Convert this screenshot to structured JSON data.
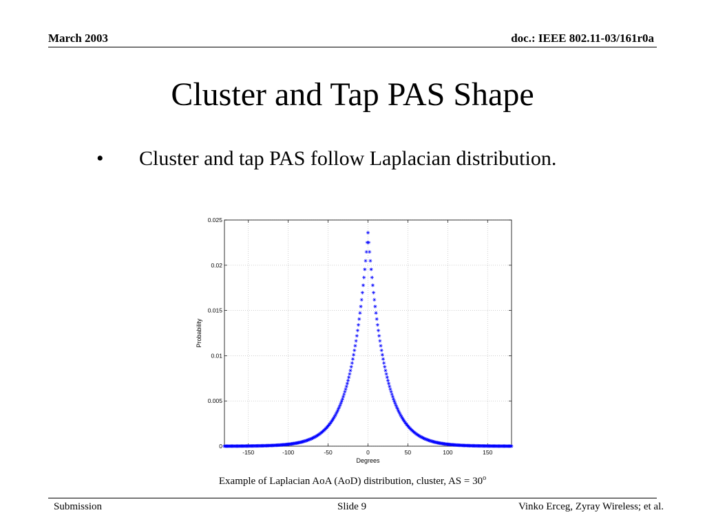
{
  "header": {
    "date": "March 2003",
    "doc": "doc.: IEEE 802.11-03/161r0a"
  },
  "title": "Cluster and Tap PAS Shape",
  "bullets": [
    {
      "marker": "•",
      "text": "Cluster and tap PAS follow Laplacian distribution."
    }
  ],
  "chart_data": {
    "type": "scatter",
    "marker": "*",
    "color": "#0000ff",
    "xlabel": "Degrees",
    "ylabel": "Probability",
    "xlim": [
      -180,
      180
    ],
    "ylim": [
      0,
      0.025
    ],
    "xticks": [
      -150,
      -100,
      -50,
      0,
      50,
      100,
      150
    ],
    "yticks": [
      0,
      0.005,
      0.01,
      0.015,
      0.02,
      0.025
    ],
    "yticklabels": [
      "0",
      "0.005",
      "0.01",
      "0.015",
      "0.02",
      "0.025"
    ],
    "grid": true,
    "x_step": 1,
    "distribution": {
      "name": "Laplacian",
      "angle_spread_deg": 30,
      "peak": 0.0236
    }
  },
  "caption": {
    "text": "Example of Laplacian AoA (AoD) distribution, cluster, AS = 30",
    "superscript": "o"
  },
  "footer": {
    "left": "Submission",
    "center": "Slide 9",
    "right": "Vinko Erceg, Zyray Wireless; et al."
  }
}
